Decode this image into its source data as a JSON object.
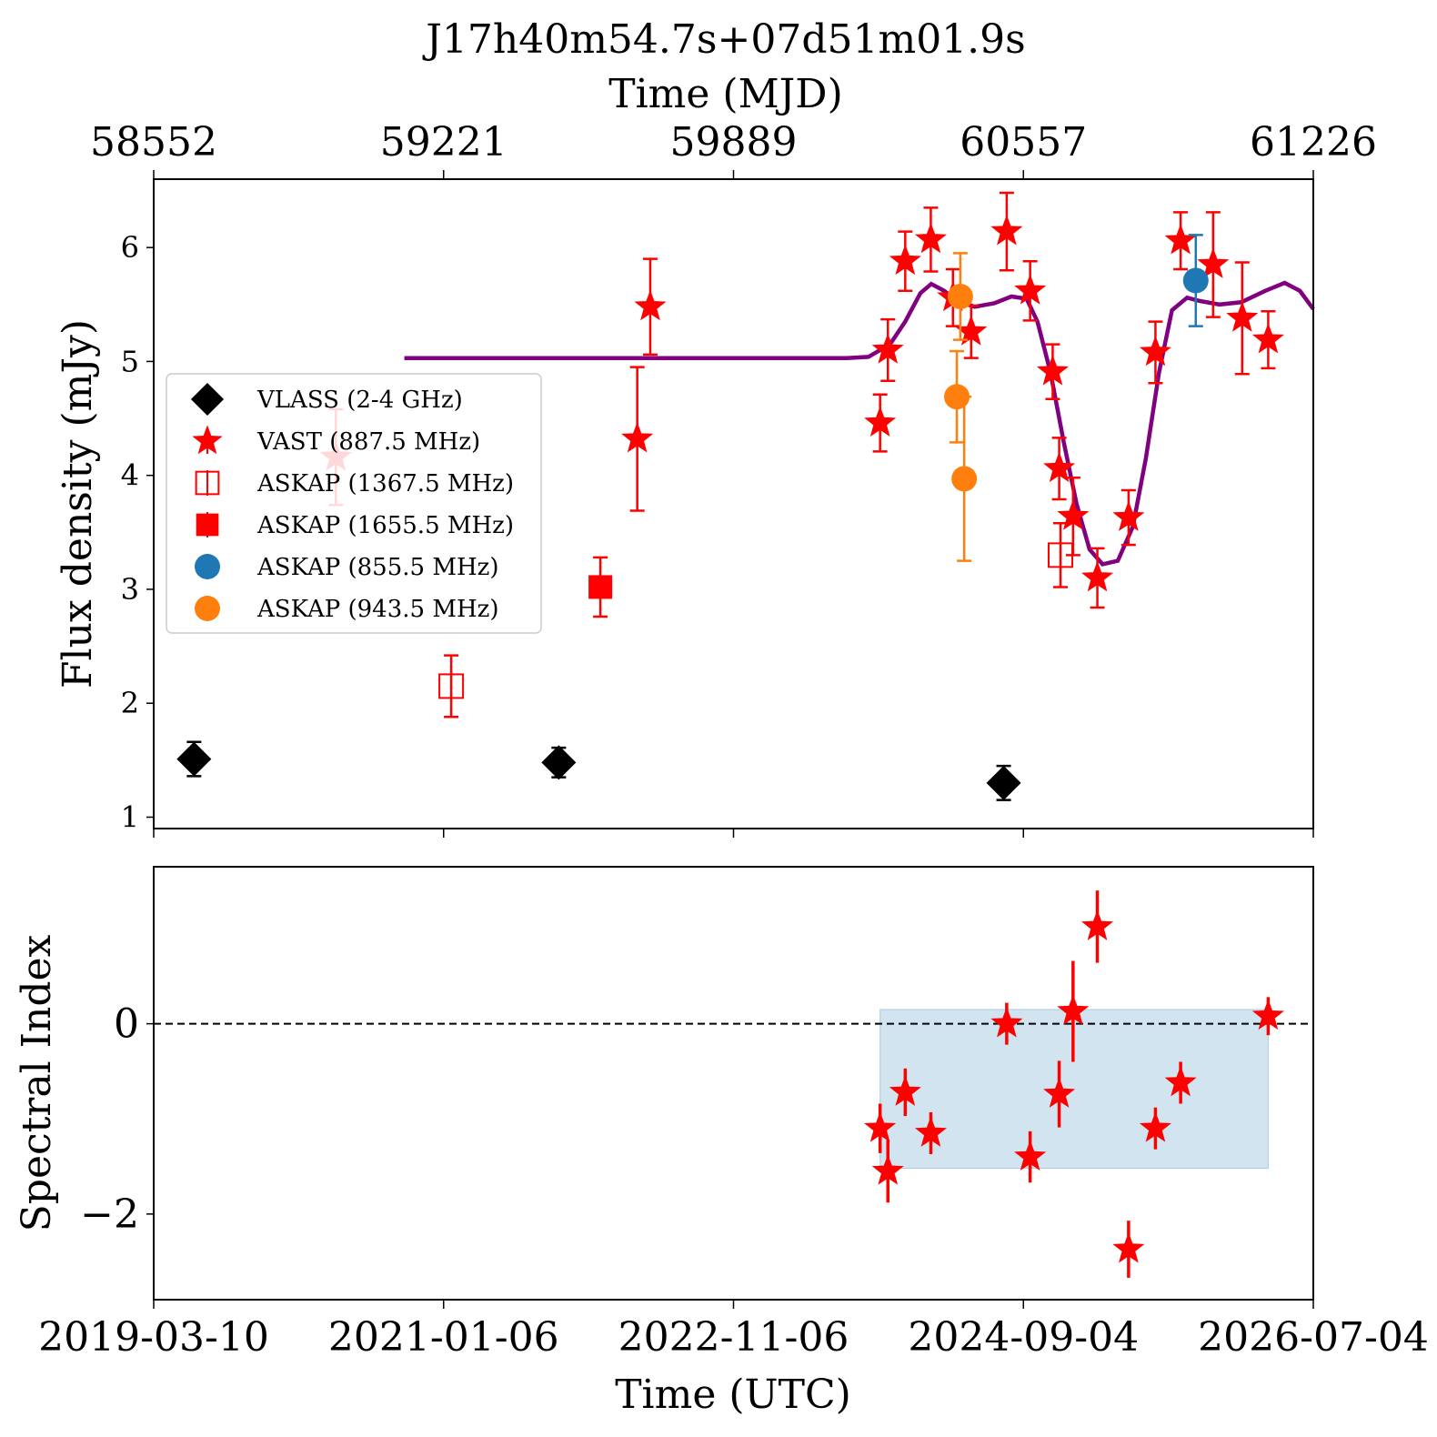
{
  "chart_data": [
    {
      "type": "scatter",
      "title": "J17h40m54.7s+07d51m01.9s",
      "top_xlabel": "Time (MJD)",
      "top_xticks": [
        "58552",
        "59221",
        "59889",
        "60557",
        "61226"
      ],
      "ylabel": "Flux density (mJy)",
      "xlim_mjd": [
        58552,
        61226
      ],
      "ylim": [
        0.9,
        6.6
      ],
      "yticks": [
        1,
        2,
        3,
        4,
        5,
        6
      ],
      "legend_position": "center-left",
      "series": [
        {
          "name": "VLASS (2-4 GHz)",
          "marker": "diamond",
          "color": "#000000",
          "filled": true,
          "points": [
            {
              "mjd": 58645,
              "y": 1.51,
              "err": 0.15
            },
            {
              "mjd": 59486,
              "y": 1.48,
              "err": 0.13
            },
            {
              "mjd": 60512,
              "y": 1.3,
              "err": 0.15
            }
          ]
        },
        {
          "name": "VAST (887.5 MHz)",
          "marker": "star",
          "color": "#ff0000",
          "filled": true,
          "points": [
            {
              "mjd": 58972,
              "y": 4.16,
              "err": 0.42
            },
            {
              "mjd": 59667,
              "y": 4.32,
              "err": 0.63
            },
            {
              "mjd": 59697,
              "y": 5.48,
              "err": 0.42
            },
            {
              "mjd": 60227,
              "y": 4.46,
              "err": 0.25
            },
            {
              "mjd": 60245,
              "y": 5.1,
              "err": 0.27
            },
            {
              "mjd": 60285,
              "y": 5.88,
              "err": 0.26
            },
            {
              "mjd": 60344,
              "y": 6.07,
              "err": 0.28
            },
            {
              "mjd": 60395,
              "y": 5.56,
              "err": 0.25
            },
            {
              "mjd": 60437,
              "y": 5.26,
              "err": 0.23
            },
            {
              "mjd": 60519,
              "y": 6.14,
              "err": 0.34
            },
            {
              "mjd": 60573,
              "y": 5.62,
              "err": 0.26
            },
            {
              "mjd": 60625,
              "y": 4.91,
              "err": 0.24
            },
            {
              "mjd": 60640,
              "y": 4.06,
              "err": 0.27
            },
            {
              "mjd": 60672,
              "y": 3.64,
              "err": 0.34
            },
            {
              "mjd": 60728,
              "y": 3.1,
              "err": 0.26
            },
            {
              "mjd": 60800,
              "y": 3.63,
              "err": 0.24
            },
            {
              "mjd": 60862,
              "y": 5.08,
              "err": 0.27
            },
            {
              "mjd": 60920,
              "y": 6.06,
              "err": 0.25
            },
            {
              "mjd": 60995,
              "y": 5.85,
              "err": 0.46
            },
            {
              "mjd": 61062,
              "y": 5.38,
              "err": 0.49
            },
            {
              "mjd": 61122,
              "y": 5.19,
              "err": 0.25
            }
          ]
        },
        {
          "name": "ASKAP (1367.5 MHz)",
          "marker": "square",
          "color": "#ff0000",
          "filled": false,
          "points": [
            {
              "mjd": 59238,
              "y": 2.15,
              "err": 0.27
            },
            {
              "mjd": 60643,
              "y": 3.3,
              "err": 0.28
            }
          ]
        },
        {
          "name": "ASKAP (1655.5 MHz)",
          "marker": "square",
          "color": "#ff0000",
          "filled": true,
          "points": [
            {
              "mjd": 59582,
              "y": 3.02,
              "err": 0.26
            }
          ]
        },
        {
          "name": "ASKAP (855.5 MHz)",
          "marker": "circle",
          "color": "#1f77b4",
          "filled": true,
          "points": [
            {
              "mjd": 60955,
              "y": 5.71,
              "err": 0.4
            }
          ]
        },
        {
          "name": "ASKAP (943.5 MHz)",
          "marker": "circle",
          "color": "#ff7f0e",
          "filled": true,
          "points": [
            {
              "mjd": 60412,
              "y": 5.57,
              "err": 0.38
            },
            {
              "mjd": 60404,
              "y": 4.69,
              "err": 0.4
            },
            {
              "mjd": 60421,
              "y": 3.97,
              "err": 0.72
            }
          ]
        }
      ],
      "model_curve": {
        "color": "#800080",
        "points": [
          [
            59130,
            5.03
          ],
          [
            59500,
            5.03
          ],
          [
            60000,
            5.03
          ],
          [
            60150,
            5.03
          ],
          [
            60200,
            5.04
          ],
          [
            60250,
            5.15
          ],
          [
            60285,
            5.35
          ],
          [
            60320,
            5.6
          ],
          [
            60345,
            5.68
          ],
          [
            60375,
            5.62
          ],
          [
            60405,
            5.53
          ],
          [
            60445,
            5.48
          ],
          [
            60490,
            5.51
          ],
          [
            60530,
            5.57
          ],
          [
            60565,
            5.55
          ],
          [
            60590,
            5.35
          ],
          [
            60620,
            4.9
          ],
          [
            60650,
            4.3
          ],
          [
            60680,
            3.75
          ],
          [
            60710,
            3.35
          ],
          [
            60740,
            3.22
          ],
          [
            60775,
            3.25
          ],
          [
            60810,
            3.55
          ],
          [
            60840,
            4.15
          ],
          [
            60870,
            4.9
          ],
          [
            60900,
            5.45
          ],
          [
            60935,
            5.56
          ],
          [
            60965,
            5.53
          ],
          [
            61010,
            5.5
          ],
          [
            61060,
            5.52
          ],
          [
            61115,
            5.62
          ],
          [
            61160,
            5.69
          ],
          [
            61195,
            5.62
          ],
          [
            61226,
            5.46
          ]
        ]
      }
    },
    {
      "type": "scatter",
      "xlabel": "Time (UTC)",
      "xticks": [
        "2019-03-10",
        "2021-01-06",
        "2022-11-06",
        "2024-09-04",
        "2026-07-04"
      ],
      "ylabel": "Spectral Index",
      "xlim_mjd": [
        58552,
        61226
      ],
      "ylim": [
        -2.9,
        1.65
      ],
      "yticks": [
        -2,
        0
      ],
      "ytick_labels": [
        "−2",
        "0"
      ],
      "reference_line": {
        "y": 0,
        "style": "dashed",
        "color": "#000000"
      },
      "shaded_band": {
        "x_mjd": [
          60227,
          61122
        ],
        "y": [
          -1.52,
          0.15
        ],
        "color": "#1f77b4",
        "opacity": 0.2
      },
      "series": [
        {
          "name": "VAST (887.5 MHz)",
          "marker": "star",
          "color": "#ff0000",
          "points": [
            {
              "mjd": 60227,
              "y": -1.1,
              "err": 0.26
            },
            {
              "mjd": 60245,
              "y": -1.55,
              "err": 0.33
            },
            {
              "mjd": 60285,
              "y": -0.72,
              "err": 0.25
            },
            {
              "mjd": 60344,
              "y": -1.15,
              "err": 0.22
            },
            {
              "mjd": 60519,
              "y": 0.0,
              "err": 0.22
            },
            {
              "mjd": 60573,
              "y": -1.4,
              "err": 0.27
            },
            {
              "mjd": 60640,
              "y": -0.74,
              "err": 0.35
            },
            {
              "mjd": 60672,
              "y": 0.13,
              "err": 0.53
            },
            {
              "mjd": 60728,
              "y": 1.02,
              "err": 0.38
            },
            {
              "mjd": 60800,
              "y": -2.37,
              "err": 0.3
            },
            {
              "mjd": 60862,
              "y": -1.1,
              "err": 0.22
            },
            {
              "mjd": 60920,
              "y": -0.62,
              "err": 0.22
            },
            {
              "mjd": 61122,
              "y": 0.08,
              "err": 0.2
            }
          ]
        }
      ]
    }
  ]
}
